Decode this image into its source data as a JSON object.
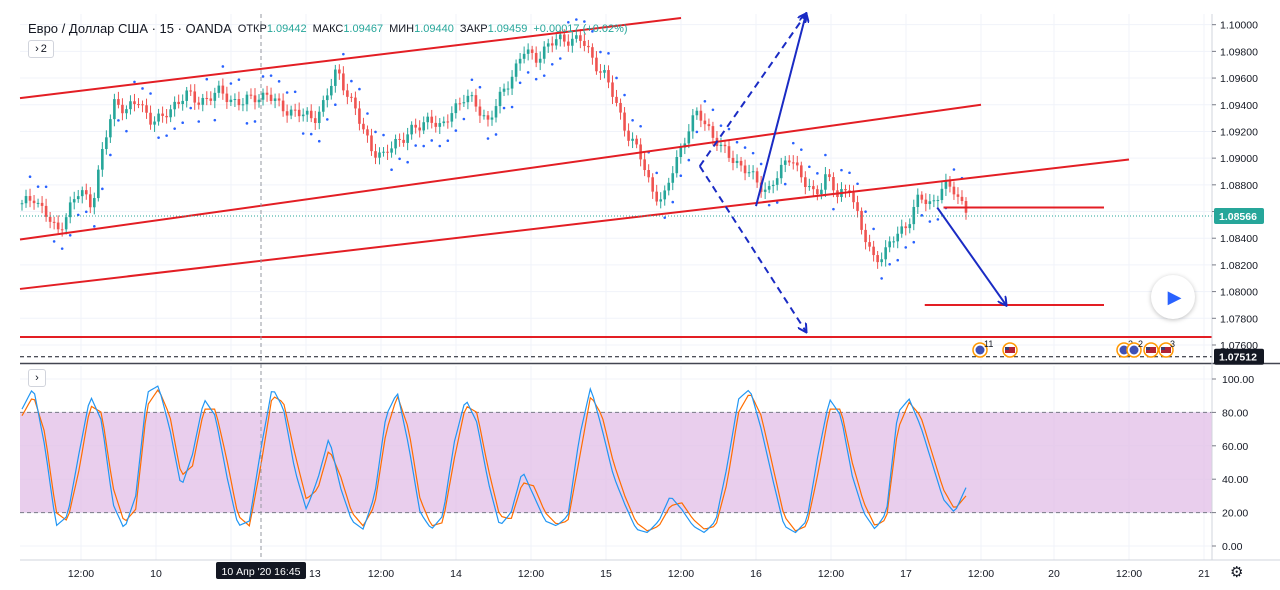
{
  "header": {
    "symbol": "Евро / Доллар США · 15 · OANDA",
    "open_label": "ОТКР",
    "open_value": "1.09442",
    "high_label": "МАКС",
    "high_value": "1.09467",
    "low_label": "МИН",
    "low_value": "1.09440",
    "close_label": "ЗАКР",
    "close_value": "1.09459",
    "change": "+0.00017 (+0.02%)"
  },
  "indicators_toggle": {
    "icon": "chevron-right-icon",
    "count": "2"
  },
  "oscillator_toggle": {
    "icon": "chevron-right-icon"
  },
  "colors": {
    "up": "#26a69a",
    "down": "#ef5350",
    "channel": "#e31e24",
    "arrow": "#1a2bc4",
    "sar": "#2962ff",
    "band": "#e1bee7",
    "k_line": "#2196f3",
    "d_line": "#ff6d00"
  },
  "chart_data": [
    {
      "type": "candlestick",
      "pair": "EUR/USD",
      "timeframe": "15",
      "price_axis_ticks": [
        "1.10000",
        "1.09800",
        "1.09600",
        "1.09400",
        "1.09200",
        "1.09000",
        "1.08800",
        "1.08600",
        "1.08400",
        "1.08200",
        "1.08000",
        "1.07800",
        "1.07600"
      ],
      "ylim": [
        1.0748,
        1.1008
      ],
      "time_axis_ticks": [
        "12:00",
        "10",
        "12:00",
        "13",
        "12:00",
        "14",
        "12:00",
        "15",
        "12:00",
        "16",
        "12:00",
        "17",
        "12:00",
        "20",
        "12:00",
        "21"
      ],
      "crosshair_time_label": "10 Апр '20   16:45",
      "current_price_label": "1.08566",
      "current_price": 1.08566,
      "reference_price_label": "1.07512",
      "reference_price": 1.07512,
      "price_path": [
        1.0864,
        1.0872,
        1.0858,
        1.0844,
        1.0862,
        1.0875,
        1.0866,
        1.0908,
        1.0944,
        1.0936,
        1.0942,
        1.093,
        1.0928,
        1.094,
        1.0948,
        1.0942,
        1.0946,
        1.0949,
        1.0944,
        1.0941,
        1.0946,
        1.0948,
        1.0939,
        1.0936,
        1.0932,
        1.093,
        1.0942,
        1.0966,
        1.0948,
        1.0926,
        1.0908,
        1.09,
        1.0912,
        1.0918,
        1.0922,
        1.0932,
        1.092,
        1.0938,
        1.0946,
        1.0939,
        1.0928,
        1.0944,
        1.0962,
        1.098,
        1.0974,
        1.0984,
        1.0988,
        1.099,
        1.0988,
        1.0974,
        1.0962,
        1.094,
        1.0918,
        1.0902,
        1.0878,
        1.0866,
        1.0896,
        1.0918,
        1.0934,
        1.0922,
        1.0906,
        1.09,
        1.0892,
        1.0882,
        1.0876,
        1.0888,
        1.0904,
        1.0882,
        1.0872,
        1.0888,
        1.087,
        1.088,
        1.0846,
        1.0826,
        1.0828,
        1.0842,
        1.0852,
        1.087,
        1.0866,
        1.0878,
        1.0876,
        1.0862
      ],
      "annotations": {
        "channel_lines": [
          {
            "from": [
              "10 Apr 00:00",
              1.0945
            ],
            "to": [
              "15 Apr 12:00",
              1.1005
            ]
          },
          {
            "from": [
              "10 Apr 00:00",
              1.0839
            ],
            "to": [
              "17 Apr 12:00",
              1.094
            ]
          },
          {
            "from": [
              "10 Apr 00:00",
              1.0802
            ],
            "to": [
              "20 Apr 12:00",
              1.0899
            ]
          }
        ],
        "horizontal_lines": [
          {
            "price": 1.0766,
            "from": "10 Apr 00:00",
            "to": "21 Apr 12:00"
          },
          {
            "price": 1.0863,
            "from": "17 Apr 06:00",
            "to": "20 Apr 08:00"
          },
          {
            "price": 1.079,
            "from": "17 Apr 03:00",
            "to": "20 Apr 08:00"
          }
        ],
        "projection_arrows": [
          {
            "style": "solid",
            "from": [
              "16 Apr 00:00",
              1.0864
            ],
            "to": [
              "16 Apr 08:00",
              1.101
            ]
          },
          {
            "style": "dashed",
            "from": [
              "15 Apr 15:00",
              1.0894
            ],
            "to": [
              "16 Apr 08:00",
              1.1015
            ]
          },
          {
            "style": "dashed",
            "from": [
              "15 Apr 15:00",
              1.0894
            ],
            "to": [
              "16 Apr 08:00",
              1.077
            ]
          },
          {
            "style": "solid",
            "from": [
              "17 Apr 05:00",
              1.0863
            ],
            "to": [
              "17 Apr 16:00",
              1.079
            ]
          }
        ]
      },
      "event_badges": [
        {
          "icon": "economic-event-icon",
          "count": "11"
        },
        {
          "icon": "us-flag-icon"
        },
        {
          "icon": "economic-event-icon",
          "count": "2"
        },
        {
          "icon": "economic-event-icon",
          "count": "2"
        },
        {
          "icon": "us-flag-icon"
        },
        {
          "icon": "us-flag-icon",
          "count": "3"
        }
      ]
    },
    {
      "type": "line",
      "indicator": "stochastic",
      "axis_ticks": [
        "100.00",
        "80.00",
        "60.00",
        "40.00",
        "20.00",
        "0.00"
      ],
      "ylim": [
        0,
        100
      ],
      "band": [
        20,
        80
      ],
      "series": [
        {
          "values": [
            82,
            95,
            60,
            12,
            18,
            55,
            90,
            75,
            25,
            10,
            30,
            92,
            96,
            70,
            35,
            55,
            88,
            78,
            42,
            12,
            15,
            58,
            95,
            82,
            45,
            22,
            40,
            65,
            35,
            15,
            10,
            30,
            78,
            92,
            60,
            20,
            10,
            18,
            62,
            88,
            74,
            38,
            12,
            20,
            45,
            30,
            15,
            12,
            18,
            65,
            95,
            70,
            42,
            25,
            10,
            8,
            15,
            30,
            22,
            12,
            8,
            15,
            48,
            88,
            94,
            70,
            40,
            12,
            8,
            15,
            55,
            88,
            78,
            42,
            20,
            10,
            20,
            80,
            88,
            72,
            50,
            28,
            20,
            35
          ]
        },
        {
          "values": [
            78,
            90,
            68,
            20,
            15,
            45,
            84,
            80,
            35,
            14,
            22,
            84,
            94,
            78,
            42,
            48,
            82,
            82,
            52,
            18,
            12,
            48,
            90,
            86,
            55,
            28,
            34,
            58,
            42,
            20,
            12,
            24,
            68,
            90,
            70,
            28,
            12,
            14,
            52,
            84,
            80,
            46,
            18,
            16,
            38,
            36,
            20,
            13,
            15,
            52,
            90,
            78,
            50,
            30,
            14,
            9,
            12,
            24,
            26,
            16,
            10,
            12,
            38,
            80,
            92,
            78,
            48,
            18,
            9,
            12,
            44,
            82,
            82,
            50,
            26,
            12,
            16,
            70,
            86,
            78,
            56,
            34,
            22,
            30
          ]
        }
      ]
    }
  ]
}
